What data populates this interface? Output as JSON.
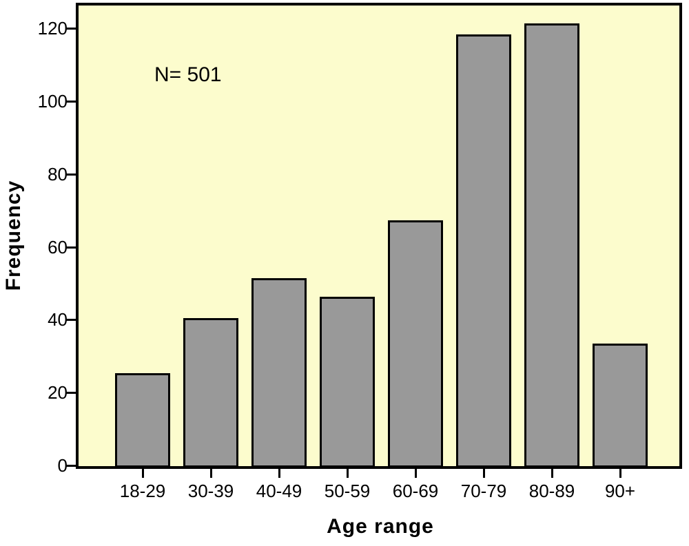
{
  "chart_data": {
    "type": "bar",
    "title": "",
    "annotation": "N= 501",
    "categories": [
      "18-29",
      "30-39",
      "40-49",
      "50-59",
      "60-69",
      "70-79",
      "80-89",
      "90+"
    ],
    "values": [
      25,
      40,
      51,
      46,
      67,
      118,
      121,
      33
    ],
    "xlabel": "Age range",
    "ylabel": "Frequency",
    "y_ticks": [
      0,
      20,
      40,
      60,
      80,
      100,
      120
    ],
    "ylim": [
      0,
      127
    ],
    "grid": false,
    "legend": "none",
    "colors": {
      "plot_background": "#FCFCCD",
      "bar_fill": "#999999",
      "bar_border": "#000000",
      "axis_color": "#000000",
      "text_color": "#000000",
      "page_background": "#FFFFFF"
    }
  }
}
